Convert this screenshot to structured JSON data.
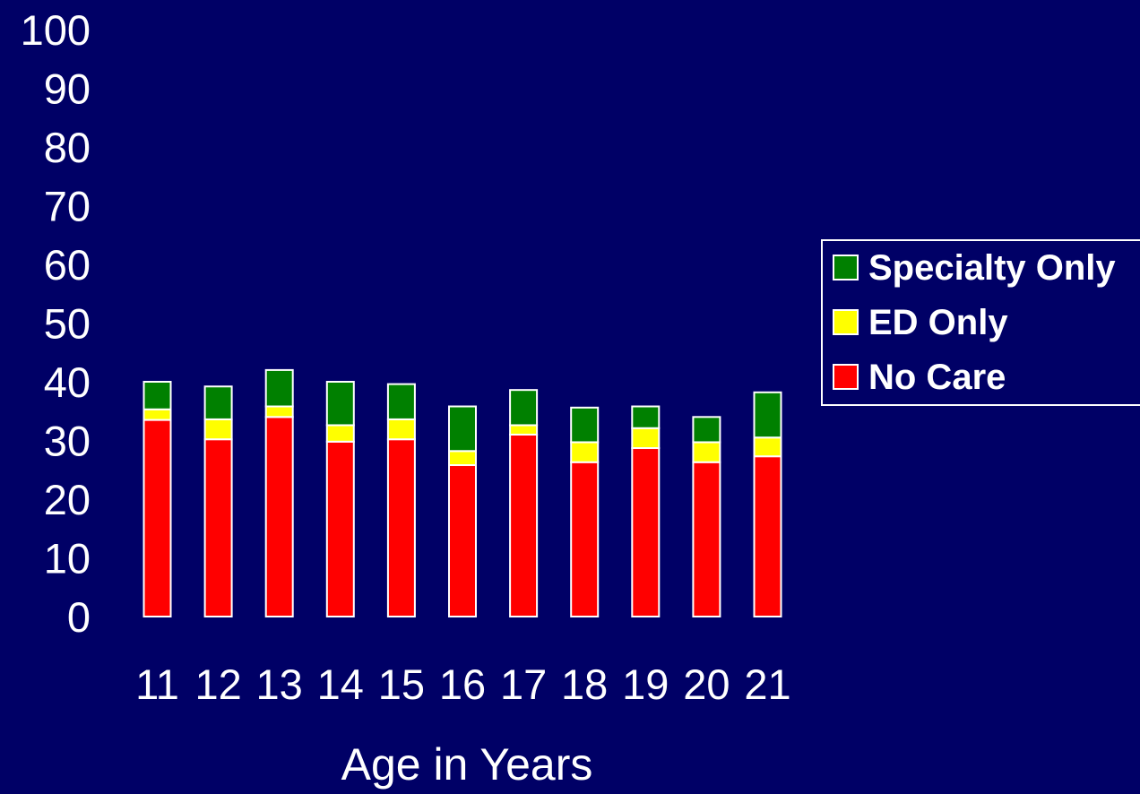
{
  "chart_data": {
    "type": "bar",
    "stacked": true,
    "categories": [
      "11",
      "12",
      "13",
      "14",
      "15",
      "16",
      "17",
      "18",
      "19",
      "20",
      "21"
    ],
    "series": [
      {
        "name": "No Care",
        "color": "#FF0000",
        "values": [
          33.5,
          30.2,
          34.0,
          29.8,
          30.2,
          25.8,
          31.0,
          26.3,
          28.7,
          26.3,
          27.3
        ]
      },
      {
        "name": "ED Only",
        "color": "#FFFF00",
        "values": [
          1.8,
          3.4,
          1.8,
          2.8,
          3.4,
          2.4,
          1.6,
          3.4,
          3.4,
          3.4,
          3.2
        ]
      },
      {
        "name": "Specialty Only",
        "color": "#008000",
        "values": [
          4.7,
          5.6,
          6.2,
          7.4,
          6.0,
          7.6,
          6.0,
          5.9,
          3.7,
          4.3,
          7.7
        ]
      }
    ],
    "xlabel": "Age in Years",
    "ylabel": "",
    "ylim": [
      0,
      100
    ],
    "yticks": [
      "0",
      "10",
      "20",
      "30",
      "40",
      "50",
      "60",
      "70",
      "80",
      "90",
      "100"
    ],
    "legend": {
      "position": "right",
      "order": [
        "Specialty Only",
        "ED Only",
        "No Care"
      ]
    },
    "grid": false
  },
  "colors": {
    "background": "#000066",
    "text": "#FFFFFF",
    "bar_outline": "#FFFFFF"
  }
}
